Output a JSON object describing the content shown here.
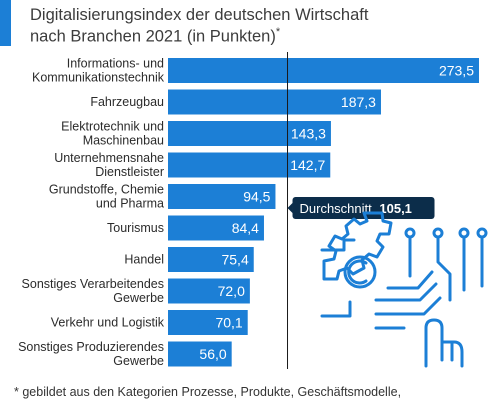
{
  "header": {
    "title_line1": "Digitalisierungsindex der deutschen Wirtschaft",
    "title_line2": "nach Branchen 2021 (in Punkten)",
    "title_marker": "*",
    "accent_color": "#1c7fd6"
  },
  "footnote": "* gebildet aus den Kategorien Prozesse, Produkte, Geschäftsmodelle,",
  "average": {
    "label": "Durchschnitt",
    "value": 105.1,
    "value_text": "105,1",
    "color": "#0c2d4a"
  },
  "illustration": {
    "icon": "digital-gear-circuit-hand-icon",
    "color": "#1c7fd6"
  },
  "chart_data": {
    "type": "bar",
    "orientation": "horizontal",
    "bar_color": "#1c7fd6",
    "categories": [
      [
        "Informations- und",
        "Kommunikationstechnik"
      ],
      [
        "Fahrzeugbau"
      ],
      [
        "Elektrotechnik und",
        "Maschinenbau"
      ],
      [
        "Unternehmensnahe",
        "Dienstleister"
      ],
      [
        "Grundstoffe, Chemie",
        "und Pharma"
      ],
      [
        "Tourismus"
      ],
      [
        "Handel"
      ],
      [
        "Sonstiges Verarbeitendes",
        "Gewerbe"
      ],
      [
        "Verkehr und Logistik"
      ],
      [
        "Sonstiges Produzierendes",
        "Gewerbe"
      ]
    ],
    "values": [
      273.5,
      187.3,
      143.3,
      142.7,
      94.5,
      84.4,
      75.4,
      72.0,
      70.1,
      56.0
    ],
    "value_labels": [
      "273,5",
      "187,3",
      "143,3",
      "142,7",
      "94,5",
      "84,4",
      "75,4",
      "72,0",
      "70,1",
      "56,0"
    ],
    "xlim": [
      0,
      273.5
    ],
    "reference_line": 105.1
  }
}
